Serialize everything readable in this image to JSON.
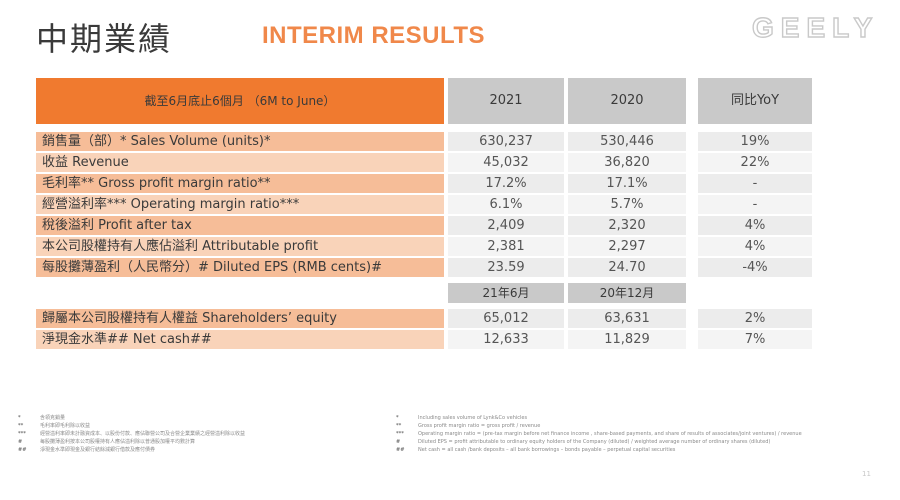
{
  "header": {
    "title_zh": "中期業績",
    "title_en": "INTERIM RESULTS",
    "logo": "GEELY",
    "page_number": "11"
  },
  "table": {
    "header": {
      "period_label": "截至6月底止6個月 （6M to June）",
      "col_2021": "2021",
      "col_2020": "2020",
      "col_yoy": "同比YoY"
    },
    "rows": [
      {
        "label": "銷售量（部）*    Sales Volume (units)*",
        "v2021": "630,237",
        "v2020": "530,446",
        "yoy": "19%"
      },
      {
        "label": "收益 Revenue",
        "v2021": "45,032",
        "v2020": "36,820",
        "yoy": "22%"
      },
      {
        "label": "毛利率** Gross profit margin ratio**",
        "v2021": "17.2%",
        "v2020": "17.1%",
        "yoy": "-"
      },
      {
        "label": "經營溢利率*** Operating margin ratio***",
        "v2021": "6.1%",
        "v2020": "5.7%",
        "yoy": "-"
      },
      {
        "label": "稅後溢利 Profit after tax",
        "v2021": "2,409",
        "v2020": "2,320",
        "yoy": "4%"
      },
      {
        "label": "本公司股權持有人應佔溢利 Attributable profit",
        "v2021": "2,381",
        "v2020": "2,297",
        "yoy": "4%"
      },
      {
        "label": "每股攤薄盈利（人民幣分）# Diluted EPS (RMB cents)#",
        "v2021": "23.59",
        "v2020": "24.70",
        "yoy": "-4%"
      }
    ],
    "sub_header": {
      "col_a": "21年6月",
      "col_b": "20年12月"
    },
    "rows2": [
      {
        "label": "歸屬本公司股權持有人權益 Shareholders’ equity",
        "v2021": "65,012",
        "v2020": "63,631",
        "yoy": "2%"
      },
      {
        "label": "淨現金水準## Net cash##",
        "v2021": "12,633",
        "v2020": "11,829",
        "yoy": "7%"
      }
    ]
  },
  "footnotes": {
    "left": [
      {
        "mark": "*",
        "text": "含領克銷量"
      },
      {
        "mark": "**",
        "text": "毛利率即毛利除以收益"
      },
      {
        "mark": "***",
        "text": "經營溢利率即未計融資成本、以股份付款、應佔聯營公司及合營企業業績之經營溢利除以收益"
      },
      {
        "mark": "#",
        "text": "每股攤薄盈利按本公司股權持有人應佔溢利除以普通股加權平均數計算"
      },
      {
        "mark": "##",
        "text": "淨現金水準即現金及銀行結餘減銀行借款及應付債券"
      }
    ],
    "right": [
      {
        "mark": "*",
        "text": "Including sales volume of Lynk&Co vehicles"
      },
      {
        "mark": "**",
        "text": "Gross profit margin ratio = gross profit / revenue"
      },
      {
        "mark": "***",
        "text": "Operating margin ratio = (pre-tax margin before net finance income , share-based payments, and share of results of associates/joint ventures) / revenue"
      },
      {
        "mark": "#",
        "text": "Diluted EPS = profit attributable to ordinary equity holders of the Company (diluted) / weighted average number of ordinary shares (diluted)"
      },
      {
        "mark": "##",
        "text": "Net cash = all cash /bank deposits – all bank borrowings – bonds payable – perpetual capital securities"
      }
    ]
  }
}
